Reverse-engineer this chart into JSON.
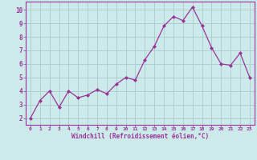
{
  "x": [
    0,
    1,
    2,
    3,
    4,
    5,
    6,
    7,
    8,
    9,
    10,
    11,
    12,
    13,
    14,
    15,
    16,
    17,
    18,
    19,
    20,
    21,
    22,
    23
  ],
  "y": [
    2,
    3.3,
    4,
    2.8,
    4,
    3.5,
    3.7,
    4.1,
    3.8,
    4.5,
    5.0,
    4.8,
    6.3,
    7.3,
    8.8,
    9.5,
    9.2,
    10.2,
    8.8,
    7.2,
    6.0,
    5.9,
    6.8,
    5.0
  ],
  "line_color": "#993399",
  "marker_color": "#993399",
  "bg_color": "#cceaea",
  "grid_color": "#aacccc",
  "xlabel": "Windchill (Refroidissement éolien,°C)",
  "xlabel_color": "#993399",
  "tick_color": "#993399",
  "spine_color": "#993399",
  "ylim": [
    1.5,
    10.6
  ],
  "xlim": [
    -0.5,
    23.5
  ],
  "yticks": [
    2,
    3,
    4,
    5,
    6,
    7,
    8,
    9,
    10
  ],
  "xticks": [
    0,
    1,
    2,
    3,
    4,
    5,
    6,
    7,
    8,
    9,
    10,
    11,
    12,
    13,
    14,
    15,
    16,
    17,
    18,
    19,
    20,
    21,
    22,
    23
  ],
  "xtick_labels": [
    "0",
    "1",
    "2",
    "3",
    "4",
    "5",
    "6",
    "7",
    "8",
    "9",
    "10",
    "11",
    "12",
    "13",
    "14",
    "15",
    "16",
    "17",
    "18",
    "19",
    "20",
    "21",
    "22",
    "23"
  ]
}
